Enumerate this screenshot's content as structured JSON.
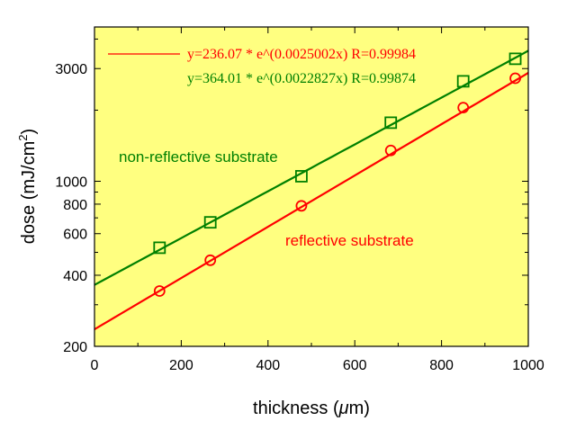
{
  "chart_data": {
    "type": "scatter",
    "xlabel_main": "thickness (",
    "xlabel_unit": "μ",
    "xlabel_tail": "m)",
    "ylabel_main": "dose (mJ/cm",
    "ylabel_sup": "2",
    "ylabel_tail": ")",
    "xlim": [
      0,
      1000
    ],
    "ylim": [
      200,
      4500
    ],
    "yscale": "log",
    "grid": false,
    "background_color": "#ffff80",
    "x_ticks": [
      0,
      200,
      400,
      600,
      800,
      1000
    ],
    "x_tick_labels": [
      "0",
      "200",
      "400",
      "600",
      "800",
      "1000"
    ],
    "y_ticks": [
      200,
      400,
      600,
      800,
      1000,
      3000
    ],
    "y_tick_labels": [
      "200",
      "400",
      "600",
      "800",
      "1000",
      "3000"
    ],
    "series": [
      {
        "marker": "square",
        "color": "#008000",
        "x": [
          150,
          267,
          477,
          683,
          850,
          970
        ],
        "y": [
          523,
          670,
          1050,
          1770,
          2650,
          3300
        ],
        "fit": {
          "a": 364.01,
          "b": 0.0022827
        },
        "fit_label": "y=364.01 * e^(0.0022827x) R=0.99874",
        "annotation": "non-reflective  substrate"
      },
      {
        "marker": "circle",
        "color": "#ff0000",
        "x": [
          150,
          267,
          477,
          683,
          850,
          970
        ],
        "y": [
          343,
          463,
          787,
          1350,
          2050,
          2730
        ],
        "fit": {
          "a": 236.07,
          "b": 0.0025002
        },
        "fit_label": "y=236.07 * e^(0.0025002x) R=0.99984",
        "annotation": "reflective  substrate"
      }
    ]
  }
}
